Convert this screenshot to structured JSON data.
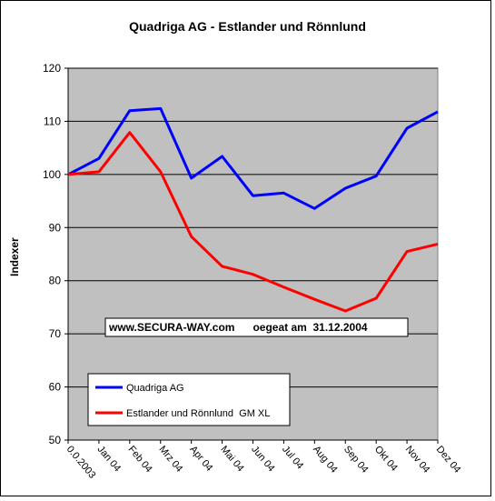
{
  "chart_data": {
    "type": "line",
    "title": "Quadriga AG - Estlander und Rönnlund",
    "ylabel": "Indexer",
    "xlabel": "",
    "ylim": [
      50,
      120
    ],
    "yticks": [
      50,
      60,
      70,
      80,
      90,
      100,
      110,
      120
    ],
    "grid": true,
    "legend_position": "bottom-left",
    "categories": [
      "0.0.2003",
      "Jan 04",
      "Feb 04",
      "Mrz 04",
      "Apr 04",
      "Mai 04",
      "Jun 04",
      "Jul 04",
      "Aug 04",
      "Sep 04",
      "Okt 04",
      "Nov 04",
      "Dez 04"
    ],
    "series": [
      {
        "name": "Quadriga AG",
        "color": "#0000ff",
        "values": [
          100,
          103,
          112,
          112.4,
          99.3,
          103.4,
          96,
          96.5,
          93.6,
          97.4,
          99.7,
          108.7,
          111.8
        ]
      },
      {
        "name": "Estlander und Rönnlund  GM XL",
        "color": "#ff0000",
        "values": [
          100,
          100.5,
          107.9,
          100.5,
          88.3,
          82.7,
          81.2,
          78.8,
          76.5,
          74.3,
          76.7,
          85.5,
          86.9
        ]
      }
    ],
    "annotation": "www.SECURA-WAY.com      oegeat am  31.12.2004",
    "plot_background": "#c0c0c0"
  }
}
